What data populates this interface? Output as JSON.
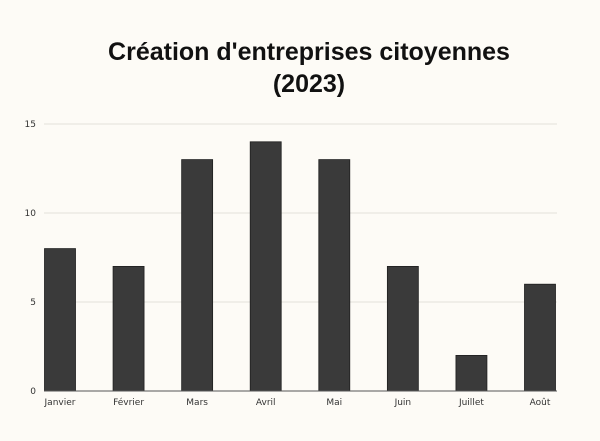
{
  "chart_data": {
    "type": "bar",
    "title_lines": [
      "Création d'entreprises citoyennes",
      "(2023)"
    ],
    "categories": [
      "Janvier",
      "Février",
      "Mars",
      "Avril",
      "Mai",
      "Juin",
      "Juillet",
      "Août"
    ],
    "values": [
      8,
      7,
      13,
      14,
      13,
      7,
      2,
      6
    ],
    "xlabel": "",
    "ylabel": "",
    "ylim": [
      0,
      15
    ],
    "yticks": [
      0,
      5,
      10,
      15
    ],
    "grid": true,
    "legend": "none",
    "bar_color": "#3a3a3a",
    "grid_color": "#e2e0da",
    "axis_color": "#555555"
  }
}
